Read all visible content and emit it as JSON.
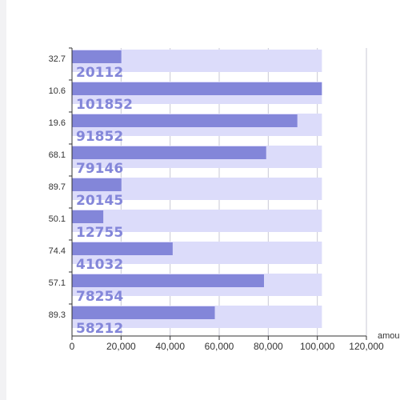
{
  "chart_data": {
    "type": "bar",
    "orientation": "horizontal",
    "categories": [
      "32.7",
      "10.6",
      "19.6",
      "68.1",
      "89.7",
      "50.1",
      "74.4",
      "57.1",
      "89.3"
    ],
    "values": [
      20112,
      101852,
      91852,
      79146,
      20145,
      12755,
      41032,
      78254,
      58212
    ],
    "background_value": 101852,
    "xlim": [
      0,
      120000
    ],
    "x_ticks": [
      "0",
      "20,000",
      "40,000",
      "60,000",
      "80,000",
      "100,000",
      "120,000"
    ],
    "xlabel": "amou",
    "grid": "vertical",
    "colors": {
      "bar": "#8386d9",
      "bar_background": "#dcdcfa",
      "label": "#8386d9",
      "grid": "#c9c9d6",
      "axis": "#333333"
    }
  }
}
